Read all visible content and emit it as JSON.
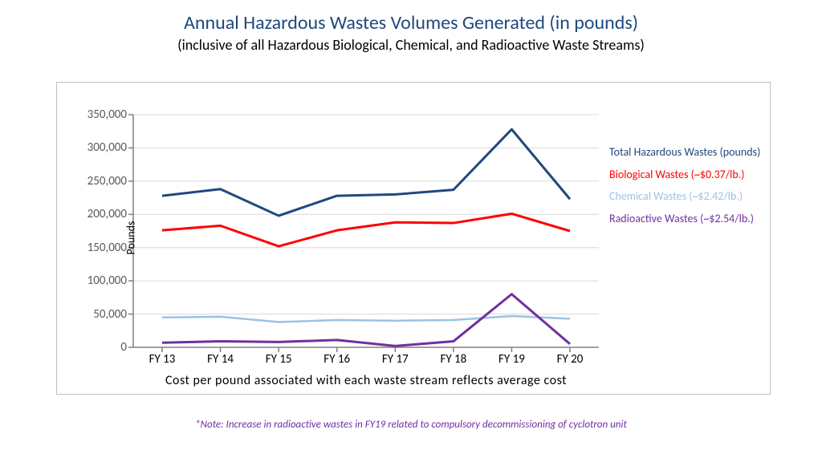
{
  "title": "Annual Hazardous Wastes Volumes Generated (in pounds)",
  "title_color": "#1f497d",
  "title_fontsize": 24,
  "subtitle": "(inclusive of all Hazardous Biological, Chemical, and Radioactive Waste Streams)",
  "subtitle_color": "#000000",
  "subtitle_fontsize": 18,
  "chart": {
    "type": "line",
    "background_color": "#ffffff",
    "border_color": "#bfbfbf",
    "y_axis": {
      "title": "Pounds",
      "title_fontsize": 14,
      "lim": [
        0,
        350000
      ],
      "tick_step": 50000,
      "ticks": [
        0,
        50000,
        100000,
        150000,
        200000,
        250000,
        300000,
        350000
      ],
      "tick_labels": [
        "0",
        "50,000",
        "100,000",
        "150,000",
        "200,000",
        "250,000",
        "300,000",
        "350,000"
      ],
      "tick_color": "#595959",
      "tick_fontsize": 15,
      "grid_color": "#d9d9d9",
      "axis_line_color": "#808080"
    },
    "x_axis": {
      "title": "Cost per pound associated with each waste stream reflects average cost",
      "title_fontsize": 16,
      "categories": [
        "FY 13",
        "FY 14",
        "FY 15",
        "FY 16",
        "FY 17",
        "FY 18",
        "FY 19",
        "FY 20"
      ],
      "tick_fontsize": 15,
      "axis_line_color": "#808080"
    },
    "series": [
      {
        "name": "Total Hazardous Wastes (pounds)",
        "color": "#1f497d",
        "line_width": 3,
        "values": [
          228000,
          238000,
          198000,
          228000,
          230000,
          237000,
          328000,
          223000
        ]
      },
      {
        "name": "Biological Wastes (~$0.37/lb.)",
        "color": "#ff0000",
        "line_width": 3,
        "values": [
          176000,
          183000,
          152000,
          176000,
          188000,
          187000,
          201000,
          175000
        ]
      },
      {
        "name": "Chemical Wastes (~$2.42/lb.)",
        "color": "#9cc2e5",
        "line_width": 2.5,
        "values": [
          45000,
          46000,
          38000,
          41000,
          40000,
          41000,
          47000,
          43000
        ]
      },
      {
        "name": "Radioactive Wastes (~$2.54/lb.)",
        "color": "#7030a0",
        "line_width": 3,
        "values": [
          7000,
          9000,
          8000,
          11000,
          2000,
          9000,
          80000,
          5000
        ]
      }
    ],
    "legend": {
      "items": [
        {
          "label": "Total Hazardous Wastes (pounds)",
          "color": "#1f497d"
        },
        {
          "label": "Biological Wastes (~$0.37/lb.)",
          "color": "#ff0000"
        },
        {
          "label": "Chemical Wastes (~$2.42/lb.)",
          "color": "#9cc2e5"
        },
        {
          "label": "Radioactive Wastes (~$2.54/lb.)",
          "color": "#7030a0"
        }
      ],
      "fontsize": 14
    }
  },
  "footnote": "*Note: Increase in radioactive wastes in FY19 related to compulsory decommissioning of cyclotron unit",
  "footnote_color": "#7030a0",
  "footnote_fontsize": 13
}
